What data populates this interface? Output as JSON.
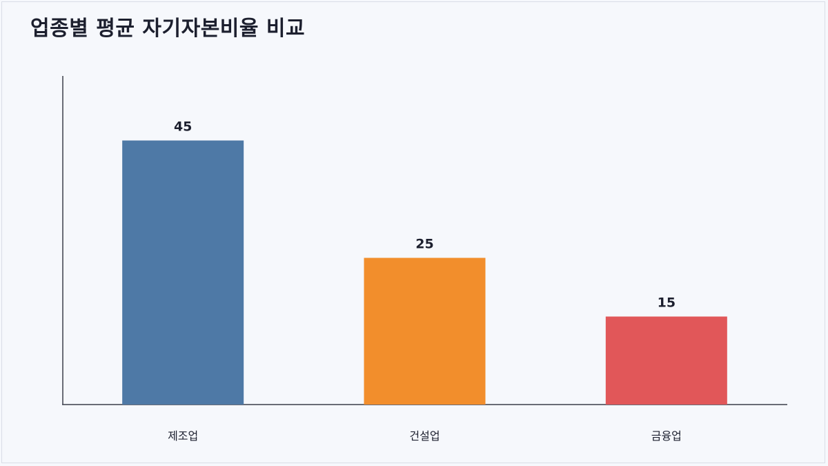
{
  "title": "업종별 평균 자기자본비율 비교",
  "chart_data": {
    "type": "bar",
    "title": "업종별 평균 자기자본비율 비교",
    "categories": [
      "제조업",
      "건설업",
      "금융업"
    ],
    "values": [
      45,
      25,
      15
    ],
    "colors": [
      "#4e79a6",
      "#f28e2c",
      "#e15759"
    ],
    "xlabel": "",
    "ylabel": "",
    "ylim": [
      0,
      56
    ],
    "grid": false,
    "legend": "none"
  }
}
